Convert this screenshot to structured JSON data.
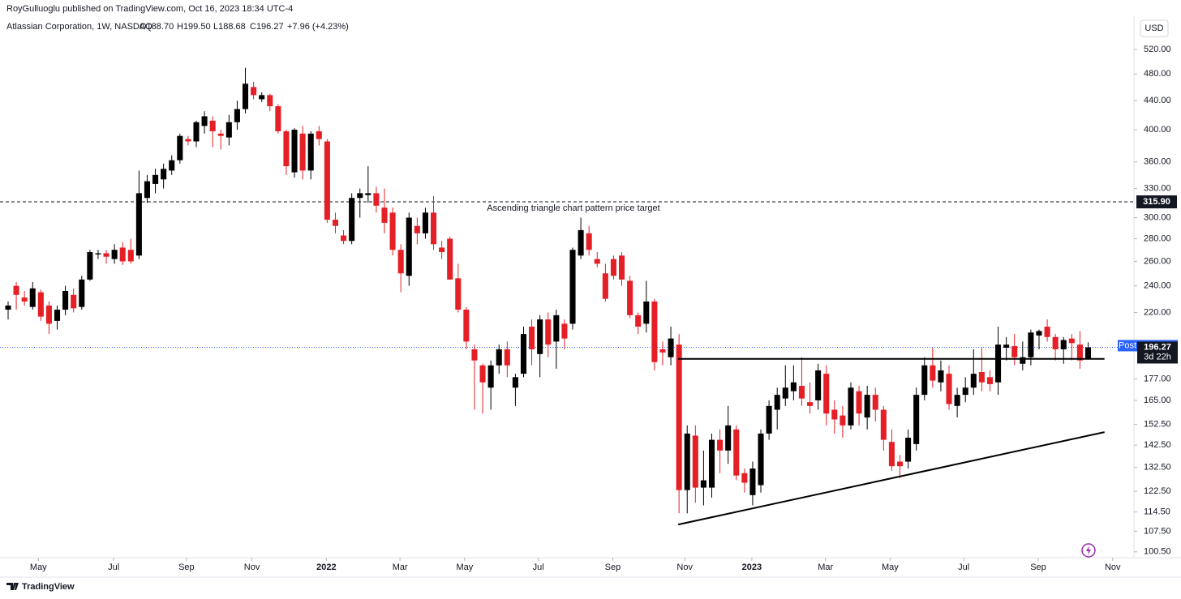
{
  "chart_data": {
    "type": "candlestick",
    "header": "RoyGulluoglu published on TradingView.com, Oct 16, 2023 18:34 UTC-4",
    "legend": {
      "symbol": "Atlassian Corporation, 1W, NASDAQ",
      "o": "O188.70",
      "h": "H199.50",
      "l": "L188.68",
      "c": "C196.27",
      "change": "+7.96 (+4.23%)"
    },
    "currency": "USD",
    "brand": "TradingView",
    "up_color": "#000000",
    "down_color": "#e51f26",
    "log_scale": true,
    "grid": false,
    "series": {
      "open": [
        222,
        240,
        231,
        224,
        235,
        225,
        214,
        222,
        233,
        224,
        245,
        266,
        267,
        262,
        272,
        270,
        265,
        320,
        335,
        340,
        350,
        362,
        388,
        385,
        405,
        412,
        395,
        390,
        410,
        428,
        460,
        442,
        448,
        432,
        398,
        348,
        395,
        350,
        398,
        385,
        298,
        283,
        278,
        320,
        323,
        325,
        310,
        305,
        270,
        248,
        292,
        285,
        305,
        272,
        280,
        246,
        222,
        195,
        185,
        172,
        185,
        195,
        172,
        180,
        210,
        192,
        215,
        200,
        212,
        212,
        265,
        285,
        262,
        250,
        262,
        265,
        244,
        218,
        212,
        228,
        195,
        190,
        198,
        123,
        147,
        124,
        124,
        145,
        140,
        150,
        130,
        121,
        125,
        148,
        160,
        166,
        170,
        173,
        164,
        165,
        180,
        160,
        157,
        152,
        170,
        156,
        168,
        160,
        144,
        135,
        135,
        143,
        168,
        185,
        175,
        180,
        162,
        168,
        172,
        181,
        178,
        175,
        196,
        197,
        186,
        190,
        204,
        210,
        203,
        195,
        202,
        198,
        188.7
      ],
      "high": [
        228,
        243,
        236,
        243,
        237,
        228,
        225,
        240,
        238,
        248,
        270,
        270,
        270,
        275,
        277,
        280,
        350,
        345,
        352,
        358,
        368,
        395,
        392,
        412,
        425,
        418,
        400,
        420,
        440,
        490,
        468,
        452,
        450,
        435,
        400,
        402,
        405,
        398,
        405,
        388,
        305,
        288,
        325,
        330,
        355,
        332,
        330,
        310,
        275,
        305,
        300,
        310,
        322,
        278,
        282,
        258,
        224,
        198,
        186,
        188,
        198,
        200,
        180,
        210,
        215,
        218,
        220,
        222,
        215,
        272,
        300,
        292,
        268,
        258,
        265,
        268,
        248,
        220,
        244,
        230,
        200,
        210,
        205,
        152,
        152,
        140,
        148,
        150,
        162,
        152,
        132,
        135,
        150,
        165,
        172,
        185,
        185,
        190,
        175,
        186,
        185,
        165,
        162,
        175,
        173,
        173,
        172,
        162,
        150,
        138,
        150,
        172,
        190,
        196,
        188,
        185,
        172,
        178,
        195,
        196,
        182,
        210,
        203,
        205,
        200,
        208,
        208,
        215,
        205,
        203,
        205,
        207,
        199.5
      ],
      "low": [
        215,
        222,
        225,
        222,
        214,
        205,
        208,
        218,
        220,
        222,
        244,
        262,
        258,
        258,
        257,
        258,
        262,
        315,
        325,
        330,
        345,
        358,
        380,
        378,
        395,
        378,
        375,
        380,
        400,
        422,
        442,
        438,
        425,
        395,
        345,
        342,
        340,
        340,
        380,
        295,
        285,
        275,
        275,
        300,
        315,
        305,
        285,
        265,
        235,
        240,
        275,
        280,
        270,
        262,
        245,
        220,
        195,
        160,
        158,
        160,
        180,
        178,
        162,
        178,
        185,
        178,
        190,
        183,
        195,
        208,
        262,
        265,
        255,
        228,
        245,
        240,
        216,
        205,
        206,
        182,
        185,
        185,
        114,
        114,
        118,
        117,
        120,
        130,
        134,
        127,
        122,
        117,
        122,
        145,
        150,
        162,
        165,
        162,
        158,
        160,
        152,
        148,
        146,
        150,
        152,
        150,
        154,
        140,
        131,
        128,
        132,
        140,
        165,
        172,
        170,
        160,
        156,
        164,
        168,
        170,
        170,
        168,
        188,
        185,
        182,
        185,
        195,
        200,
        188,
        186,
        188,
        183,
        188.68
      ],
      "close": [
        225,
        233,
        228,
        238,
        217,
        212,
        222,
        236,
        223,
        245,
        268,
        267,
        264,
        270,
        260,
        260,
        325,
        338,
        345,
        352,
        362,
        392,
        385,
        410,
        418,
        398,
        392,
        410,
        428,
        465,
        448,
        448,
        432,
        398,
        355,
        400,
        350,
        395,
        388,
        298,
        292,
        278,
        320,
        325,
        325,
        312,
        295,
        270,
        250,
        300,
        285,
        305,
        275,
        268,
        245,
        222,
        200,
        188,
        175,
        185,
        195,
        185,
        178,
        205,
        195,
        215,
        198,
        218,
        202,
        270,
        288,
        270,
        258,
        230,
        248,
        245,
        218,
        210,
        228,
        187,
        193,
        202,
        123,
        148,
        124,
        127,
        145,
        140,
        152,
        129,
        126,
        132,
        148,
        162,
        168,
        172,
        175,
        166,
        162,
        182,
        158,
        155,
        152,
        172,
        158,
        168,
        160,
        145,
        133,
        133,
        146,
        168,
        185,
        176,
        182,
        163,
        168,
        172,
        180,
        175,
        174,
        198,
        198,
        190,
        190,
        206,
        207,
        203,
        195,
        201,
        199,
        188,
        196.27
      ]
    },
    "ylim": [
      98.6,
      580
    ],
    "yticks": [
      {
        "value": 100.5,
        "label": "100.50"
      },
      {
        "value": 107.5,
        "label": "107.50"
      },
      {
        "value": 114.5,
        "label": "114.50"
      },
      {
        "value": 122.5,
        "label": "122.50"
      },
      {
        "value": 132.5,
        "label": "132.50"
      },
      {
        "value": 142.5,
        "label": "142.50"
      },
      {
        "value": 152.5,
        "label": "152.50"
      },
      {
        "value": 165,
        "label": "165.00"
      },
      {
        "value": 177,
        "label": "177.00"
      },
      {
        "value": 220,
        "label": "220.00"
      },
      {
        "value": 240,
        "label": "240.00"
      },
      {
        "value": 260,
        "label": "260.00"
      },
      {
        "value": 280,
        "label": "280.00"
      },
      {
        "value": 300,
        "label": "300.00"
      },
      {
        "value": 330,
        "label": "330.00"
      },
      {
        "value": 360,
        "label": "360.00"
      },
      {
        "value": 400,
        "label": "400.00"
      },
      {
        "value": 440,
        "label": "440.00"
      },
      {
        "value": 480,
        "label": "480.00"
      },
      {
        "value": 520,
        "label": "520.00"
      }
    ],
    "xlim": [
      -0.99,
      137.6
    ],
    "xticks": [
      {
        "value": 3.7,
        "label": "May"
      },
      {
        "value": 12.9,
        "label": "Jul"
      },
      {
        "value": 21.8,
        "label": "Sep"
      },
      {
        "value": 29.8,
        "label": "Nov"
      },
      {
        "value": 38.9,
        "label": "2022"
      },
      {
        "value": 47.9,
        "label": "Mar"
      },
      {
        "value": 55.8,
        "label": "May"
      },
      {
        "value": 64.8,
        "label": "Jul"
      },
      {
        "value": 73.9,
        "label": "Sep"
      },
      {
        "value": 82.7,
        "label": "Nov"
      },
      {
        "value": 90.9,
        "label": "2023"
      },
      {
        "value": 99.9,
        "label": "Mar"
      },
      {
        "value": 107.8,
        "label": "May"
      },
      {
        "value": 116.8,
        "label": "Jul"
      },
      {
        "value": 125.9,
        "label": "Sep"
      },
      {
        "value": 135.0,
        "label": "Nov"
      }
    ],
    "target": {
      "value": 315.9,
      "label": "315.90",
      "text": "Ascending triangle chart pattern price target"
    },
    "resistance": {
      "value": 189,
      "x": [
        81.9,
        134.0
      ]
    },
    "trendline": {
      "x": [
        81.9,
        134.0
      ],
      "y": [
        109.9,
        148.7
      ]
    },
    "post": {
      "label": "Post",
      "value": 197.34
    },
    "countdown": "3d 22h"
  }
}
